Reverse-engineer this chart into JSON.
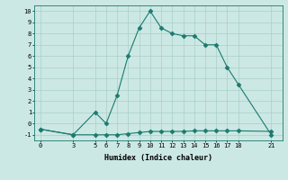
{
  "xlabel": "Humidex (Indice chaleur)",
  "x_ticks": [
    0,
    3,
    5,
    6,
    7,
    8,
    9,
    10,
    11,
    12,
    13,
    14,
    15,
    16,
    17,
    18,
    21
  ],
  "upper_x": [
    0,
    3,
    5,
    6,
    7,
    8,
    9,
    10,
    11,
    12,
    13,
    14,
    15,
    16,
    17,
    18,
    21
  ],
  "upper_y": [
    -0.5,
    -1.0,
    1.0,
    0.0,
    2.5,
    6.0,
    8.5,
    10.0,
    8.5,
    8.0,
    7.8,
    7.8,
    7.0,
    7.0,
    5.0,
    3.5,
    -1.0
  ],
  "lower_x": [
    0,
    3,
    5,
    6,
    7,
    8,
    9,
    10,
    11,
    12,
    13,
    14,
    15,
    16,
    17,
    18,
    21
  ],
  "lower_y": [
    -0.5,
    -1.0,
    -1.0,
    -1.0,
    -1.0,
    -0.9,
    -0.8,
    -0.7,
    -0.7,
    -0.7,
    -0.7,
    -0.65,
    -0.65,
    -0.65,
    -0.65,
    -0.65,
    -0.7
  ],
  "line_color": "#1a7a6e",
  "bg_color": "#cce8e4",
  "grid_color": "#a8cfc8",
  "ylim": [
    -1.5,
    10.5
  ],
  "xlim": [
    -0.5,
    22
  ],
  "y_ticks": [
    -1,
    0,
    1,
    2,
    3,
    4,
    5,
    6,
    7,
    8,
    9,
    10
  ]
}
